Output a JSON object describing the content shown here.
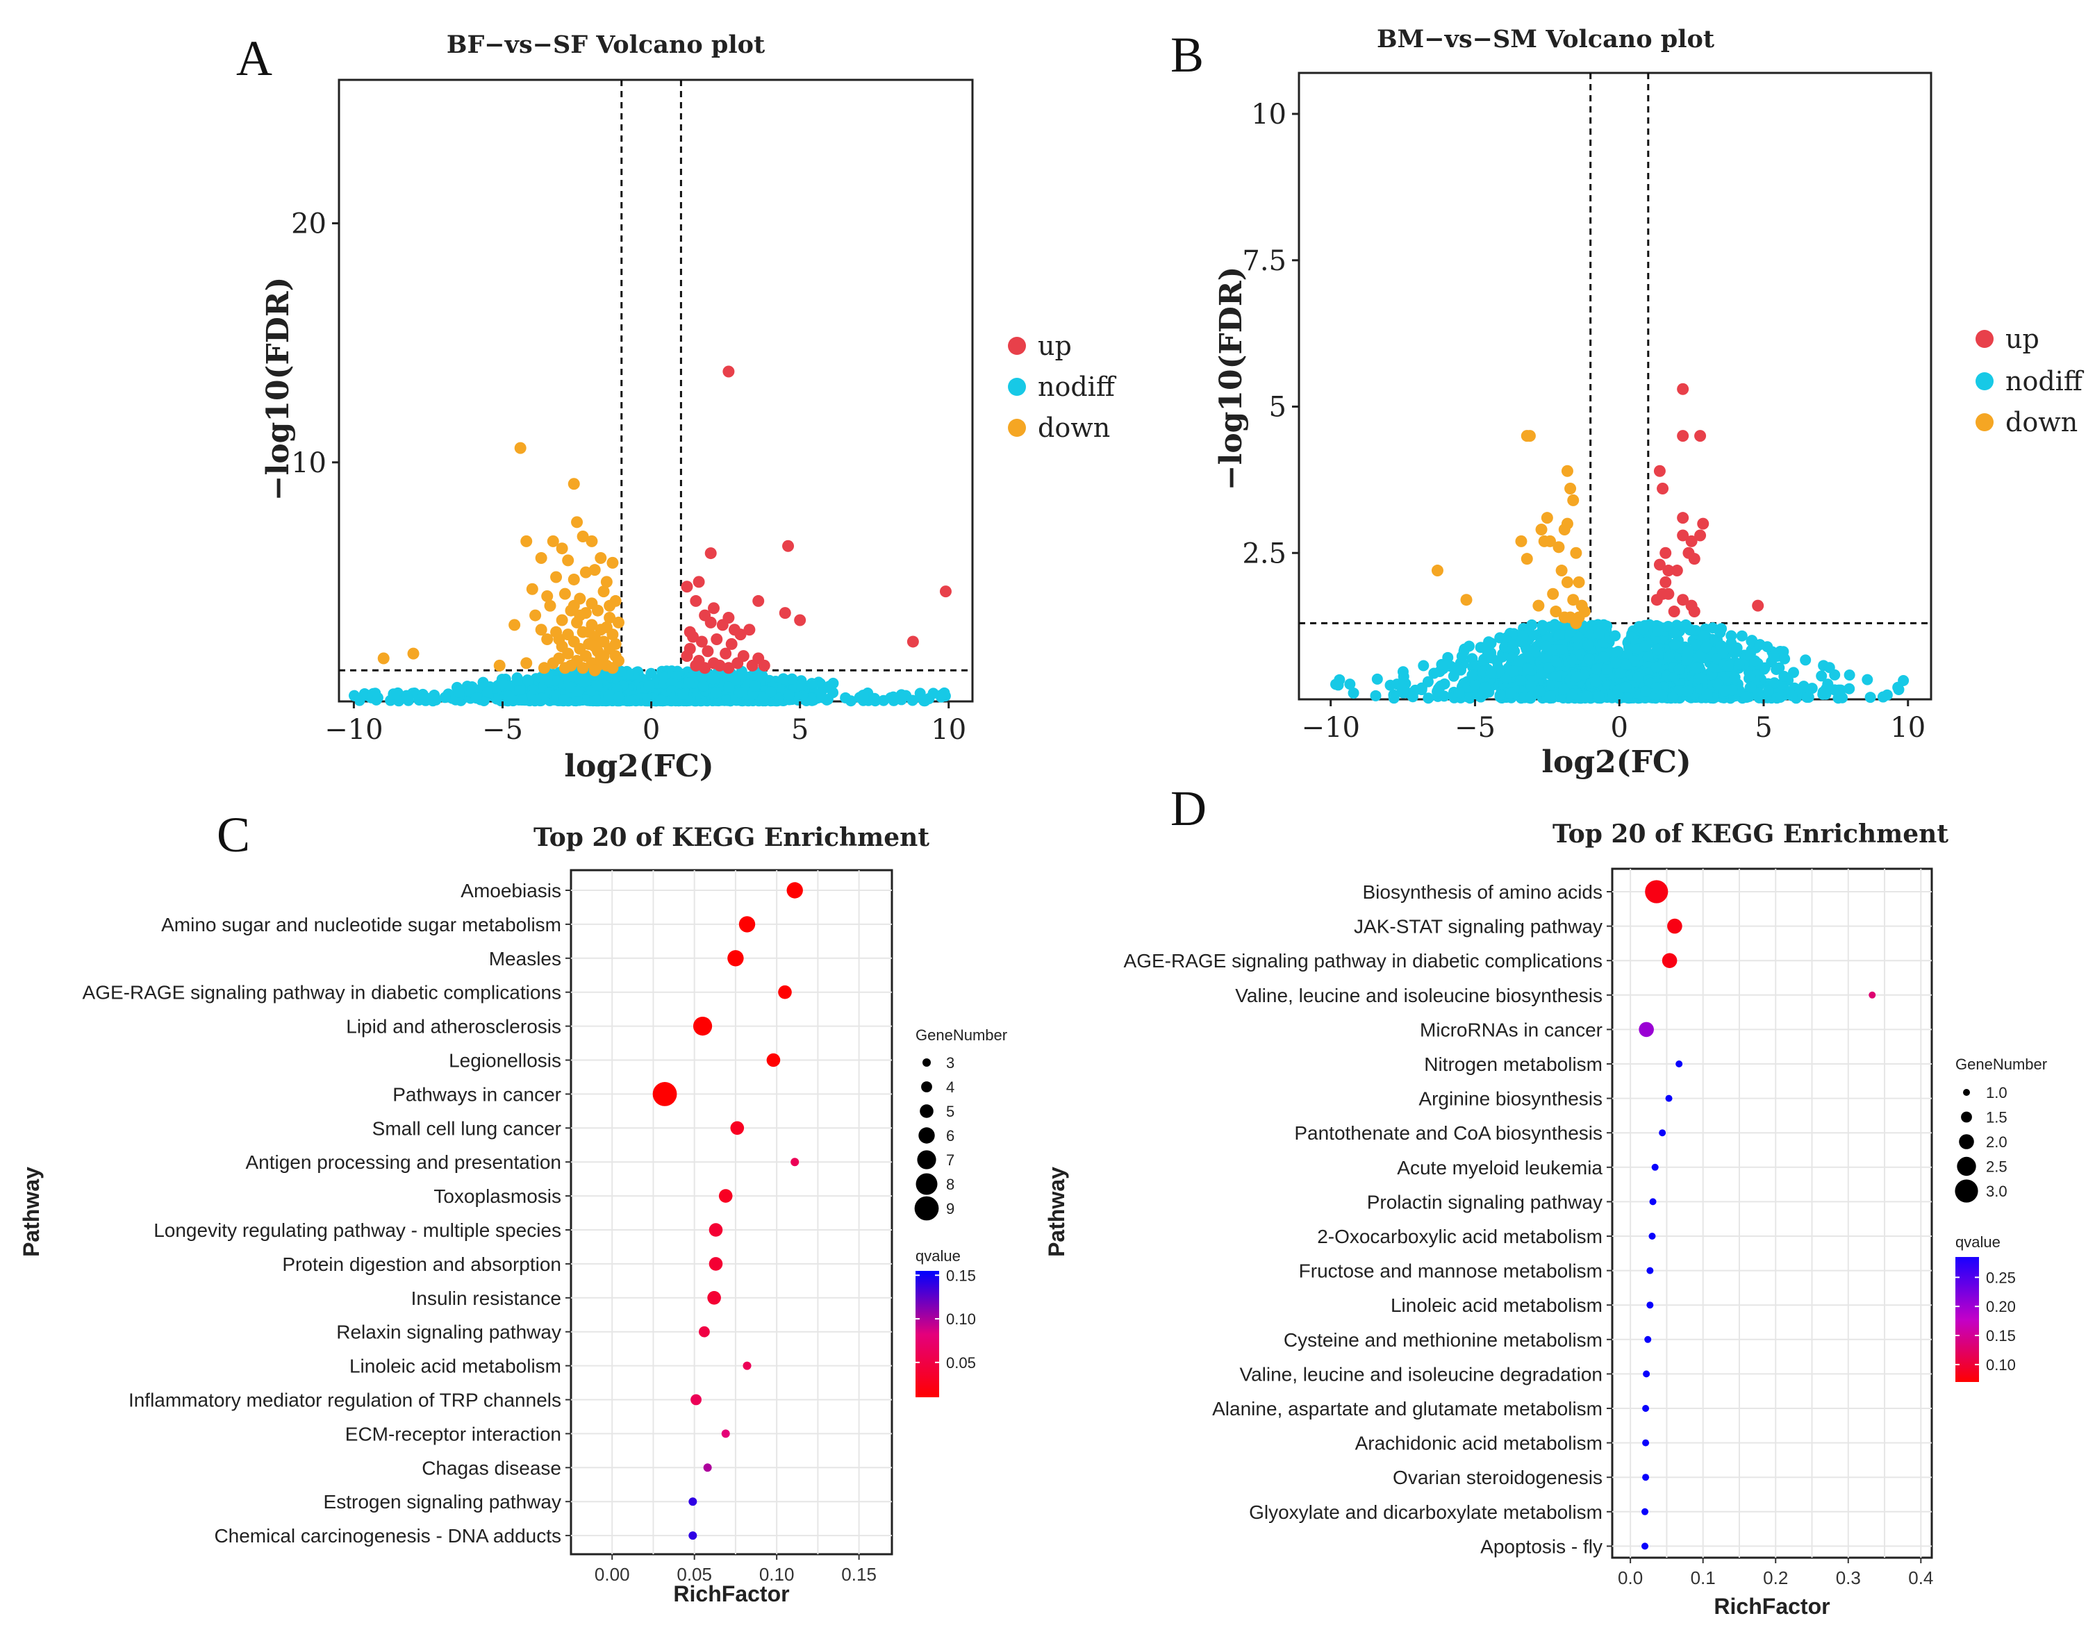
{
  "chart_data": [
    {
      "panel": "A",
      "type": "scatter",
      "title": "BF−vs−SF Volcano plot",
      "xlabel": "log2(FC)",
      "ylabel": "−log10(FDR)",
      "xlim": [
        -10.5,
        10.8
      ],
      "ylim": [
        0,
        26
      ],
      "xticks": [
        -10,
        -5,
        0,
        5,
        10
      ],
      "yticks": [
        10,
        20
      ],
      "xtick_labels": [
        "−10",
        "−5",
        "0",
        "5",
        "10"
      ],
      "ytick_labels": [
        "10",
        "20"
      ],
      "thresholds": {
        "log2fc": [
          -1,
          1
        ],
        "neg_log10_fdr": 1.3
      },
      "legend": [
        {
          "label": "up",
          "color": "#e8404a"
        },
        {
          "label": "nodiff",
          "color": "#17c9e6"
        },
        {
          "label": "down",
          "color": "#f5a623"
        }
      ],
      "series": [
        {
          "name": "up",
          "points": [
            [
              2.6,
              13.8
            ],
            [
              4.6,
              6.5
            ],
            [
              9.9,
              4.6
            ],
            [
              8.8,
              2.5
            ],
            [
              2.0,
              6.2
            ],
            [
              1.6,
              5.0
            ],
            [
              3.6,
              4.2
            ],
            [
              4.5,
              3.7
            ],
            [
              5.0,
              3.4
            ],
            [
              1.2,
              4.8
            ],
            [
              1.5,
              4.2
            ],
            [
              1.8,
              3.6
            ],
            [
              2.1,
              3.9
            ],
            [
              2.4,
              3.2
            ],
            [
              2.8,
              3.0
            ],
            [
              3.0,
              2.8
            ],
            [
              3.3,
              3.0
            ],
            [
              1.4,
              2.7
            ],
            [
              1.7,
              2.5
            ],
            [
              2.2,
              2.6
            ],
            [
              2.7,
              2.4
            ],
            [
              1.3,
              2.2
            ],
            [
              1.9,
              2.1
            ],
            [
              2.5,
              2.0
            ],
            [
              3.1,
              1.9
            ],
            [
              3.6,
              1.8
            ],
            [
              1.6,
              1.7
            ],
            [
              2.1,
              1.6
            ],
            [
              2.9,
              1.6
            ],
            [
              3.4,
              1.5
            ],
            [
              1.2,
              1.9
            ],
            [
              1.5,
              1.5
            ],
            [
              2.6,
              1.4
            ],
            [
              3.8,
              1.5
            ],
            [
              1.8,
              1.4
            ],
            [
              2.3,
              1.5
            ],
            [
              1.3,
              2.9
            ],
            [
              2.0,
              3.3
            ],
            [
              2.6,
              3.5
            ]
          ]
        },
        {
          "name": "down",
          "points": [
            [
              -4.4,
              10.6
            ],
            [
              -3.3,
              6.7
            ],
            [
              -4.2,
              6.7
            ],
            [
              -2.6,
              9.1
            ],
            [
              -2.5,
              7.5
            ],
            [
              -2.3,
              6.9
            ],
            [
              -3.0,
              6.4
            ],
            [
              -2.0,
              6.7
            ],
            [
              -1.7,
              6.0
            ],
            [
              -3.7,
              6.0
            ],
            [
              -2.8,
              5.9
            ],
            [
              -1.3,
              5.8
            ],
            [
              -2.2,
              5.4
            ],
            [
              -1.9,
              5.5
            ],
            [
              -3.2,
              5.2
            ],
            [
              -2.6,
              5.1
            ],
            [
              -1.5,
              5.0
            ],
            [
              -4.0,
              4.7
            ],
            [
              -3.5,
              4.4
            ],
            [
              -2.9,
              4.5
            ],
            [
              -2.4,
              4.3
            ],
            [
              -1.6,
              4.6
            ],
            [
              -2.0,
              4.1
            ],
            [
              -1.2,
              4.2
            ],
            [
              -3.4,
              4.0
            ],
            [
              -2.7,
              3.8
            ],
            [
              -2.2,
              3.7
            ],
            [
              -1.8,
              3.8
            ],
            [
              -1.4,
              3.5
            ],
            [
              -4.6,
              3.2
            ],
            [
              -3.9,
              3.6
            ],
            [
              -3.0,
              3.4
            ],
            [
              -2.5,
              3.3
            ],
            [
              -2.0,
              3.2
            ],
            [
              -1.5,
              3.1
            ],
            [
              -1.1,
              3.3
            ],
            [
              -3.7,
              3.0
            ],
            [
              -3.2,
              2.9
            ],
            [
              -2.8,
              2.8
            ],
            [
              -2.3,
              2.9
            ],
            [
              -1.9,
              2.7
            ],
            [
              -1.3,
              2.8
            ],
            [
              -3.5,
              2.6
            ],
            [
              -2.6,
              2.5
            ],
            [
              -2.1,
              2.4
            ],
            [
              -1.6,
              2.5
            ],
            [
              -1.2,
              2.4
            ],
            [
              -3.0,
              2.3
            ],
            [
              -2.4,
              2.2
            ],
            [
              -1.8,
              2.1
            ],
            [
              -1.4,
              2.2
            ],
            [
              -2.8,
              2.0
            ],
            [
              -2.2,
              1.9
            ],
            [
              -1.7,
              1.8
            ],
            [
              -1.2,
              1.9
            ],
            [
              -3.1,
              1.8
            ],
            [
              -2.5,
              1.7
            ],
            [
              -2.0,
              1.6
            ],
            [
              -1.5,
              1.5
            ],
            [
              -1.1,
              1.7
            ],
            [
              -2.7,
              1.5
            ],
            [
              -2.3,
              1.4
            ],
            [
              -1.8,
              1.5
            ],
            [
              -1.3,
              1.4
            ],
            [
              -8.0,
              2.0
            ],
            [
              -9.0,
              1.8
            ],
            [
              -5.1,
              1.5
            ],
            [
              -4.2,
              1.6
            ],
            [
              -3.6,
              1.4
            ],
            [
              -3.3,
              1.6
            ],
            [
              -2.9,
              1.4
            ],
            [
              -1.9,
              1.3
            ],
            [
              -1.6,
              1.9
            ],
            [
              -2.1,
              2.9
            ],
            [
              -2.4,
              3.6
            ],
            [
              -1.7,
              3.0
            ],
            [
              -1.4,
              4.0
            ],
            [
              -2.6,
              4.0
            ],
            [
              -3.1,
              2.6
            ],
            [
              -1.9,
              2.3
            ]
          ]
        }
      ]
    },
    {
      "panel": "B",
      "type": "scatter",
      "title": "BM−vs−SM Volcano plot",
      "xlabel": "log2(FC)",
      "ylabel": "−log10(FDR)",
      "xlim": [
        -11.1,
        10.8
      ],
      "ylim": [
        0,
        10.7
      ],
      "xticks": [
        -10,
        -5,
        0,
        5,
        10
      ],
      "yticks": [
        2.5,
        5,
        7.5,
        10
      ],
      "xtick_labels": [
        "−10",
        "−5",
        "0",
        "5",
        "10"
      ],
      "ytick_labels": [
        "2.5",
        "5",
        "7.5",
        "10"
      ],
      "thresholds": {
        "log2fc": [
          -1,
          1
        ],
        "neg_log10_fdr": 1.3
      },
      "legend": [
        {
          "label": "up",
          "color": "#e8404a"
        },
        {
          "label": "nodiff",
          "color": "#17c9e6"
        },
        {
          "label": "down",
          "color": "#f5a623"
        }
      ],
      "series": [
        {
          "name": "up",
          "points": [
            [
              2.2,
              5.3
            ],
            [
              2.2,
              4.5
            ],
            [
              2.8,
              4.5
            ],
            [
              1.4,
              3.9
            ],
            [
              1.5,
              3.6
            ],
            [
              2.2,
              3.1
            ],
            [
              2.2,
              2.8
            ],
            [
              1.6,
              2.5
            ],
            [
              2.4,
              2.5
            ],
            [
              2.6,
              2.4
            ],
            [
              2.5,
              2.7
            ],
            [
              2.8,
              2.8
            ],
            [
              2.9,
              3.0
            ],
            [
              1.4,
              2.3
            ],
            [
              1.6,
              2.0
            ],
            [
              1.5,
              1.8
            ],
            [
              1.7,
              1.8
            ],
            [
              2.2,
              1.7
            ],
            [
              2.5,
              1.6
            ],
            [
              4.8,
              1.6
            ],
            [
              2.6,
              1.5
            ],
            [
              1.3,
              1.7
            ],
            [
              1.9,
              1.5
            ],
            [
              2.0,
              2.2
            ],
            [
              1.7,
              2.2
            ]
          ]
        },
        {
          "name": "down",
          "points": [
            [
              -3.2,
              4.5
            ],
            [
              -3.1,
              4.5
            ],
            [
              -1.8,
              3.9
            ],
            [
              -1.7,
              3.6
            ],
            [
              -1.6,
              3.4
            ],
            [
              -1.8,
              3.0
            ],
            [
              -1.9,
              2.9
            ],
            [
              -2.4,
              2.7
            ],
            [
              -2.6,
              2.7
            ],
            [
              -2.1,
              2.6
            ],
            [
              -1.5,
              2.5
            ],
            [
              -2.0,
              2.2
            ],
            [
              -1.8,
              2.0
            ],
            [
              -1.4,
              2.0
            ],
            [
              -2.3,
              1.8
            ],
            [
              -1.6,
              1.7
            ],
            [
              -1.3,
              1.6
            ],
            [
              -2.8,
              1.6
            ],
            [
              -6.3,
              2.2
            ],
            [
              -5.3,
              1.7
            ],
            [
              -3.2,
              2.4
            ],
            [
              -2.7,
              2.9
            ],
            [
              -2.5,
              3.1
            ],
            [
              -3.4,
              2.7
            ],
            [
              -1.2,
              1.5
            ],
            [
              -1.4,
              1.4
            ],
            [
              -1.9,
              1.4
            ],
            [
              -2.2,
              1.5
            ],
            [
              -1.5,
              1.3
            ],
            [
              -1.7,
              1.4
            ]
          ]
        }
      ]
    },
    {
      "panel": "C",
      "type": "scatter",
      "title": "Top 20 of KEGG Enrichment",
      "xlabel": "RichFactor",
      "ylabel": "Pathway",
      "xlim": [
        -0.025,
        0.17
      ],
      "xticks": [
        0,
        0.05,
        0.1,
        0.15
      ],
      "xtick_labels": [
        "0.00",
        "0.05",
        "0.10",
        "0.15"
      ],
      "categories": [
        "Amoebiasis",
        "Amino sugar and nucleotide sugar metabolism",
        "Measles",
        "AGE-RAGE signaling pathway in diabetic complications",
        "Lipid and atherosclerosis",
        "Legionellosis",
        "Pathways in cancer",
        "Small cell lung cancer",
        "Antigen processing and presentation",
        "Toxoplasmosis",
        "Longevity regulating pathway - multiple species",
        "Protein digestion and absorption",
        "Insulin resistance",
        "Relaxin signaling pathway",
        "Linoleic acid metabolism",
        "Inflammatory mediator regulation of TRP channels",
        "ECM-receptor interaction",
        "Chagas disease",
        "Estrogen signaling pathway",
        "Chemical carcinogenesis - DNA adducts"
      ],
      "rich_factor": [
        0.111,
        0.082,
        0.075,
        0.105,
        0.055,
        0.098,
        0.032,
        0.076,
        0.111,
        0.069,
        0.063,
        0.063,
        0.062,
        0.056,
        0.082,
        0.051,
        0.069,
        0.058,
        0.049,
        0.049
      ],
      "gene_number": [
        6,
        6,
        6,
        5,
        7,
        5,
        9,
        5,
        3,
        5,
        5,
        5,
        5,
        4,
        3,
        4,
        3,
        3,
        3,
        3
      ],
      "qvalue": [
        0.01,
        0.01,
        0.01,
        0.01,
        0.01,
        0.01,
        0.01,
        0.03,
        0.06,
        0.03,
        0.04,
        0.04,
        0.04,
        0.05,
        0.06,
        0.06,
        0.08,
        0.1,
        0.14,
        0.14
      ],
      "size_legend": {
        "title": "GeneNumber",
        "values": [
          3,
          4,
          5,
          6,
          7,
          8,
          9
        ],
        "labels": [
          "3",
          "4",
          "5",
          "6",
          "7",
          "8",
          "9"
        ]
      },
      "color_legend": {
        "title": "qvalue",
        "min": 0.01,
        "max": 0.155,
        "ticks": [
          0.05,
          0.1,
          0.15
        ],
        "labels": [
          "0.05",
          "0.10",
          "0.15"
        ]
      }
    },
    {
      "panel": "D",
      "type": "scatter",
      "title": "Top 20 of KEGG Enrichment",
      "xlabel": "RichFactor",
      "ylabel": "Pathway",
      "xlim": [
        -0.025,
        0.415
      ],
      "xticks": [
        0,
        0.1,
        0.2,
        0.3,
        0.4
      ],
      "xtick_labels": [
        "0.0",
        "0.1",
        "0.2",
        "0.3",
        "0.4"
      ],
      "categories": [
        "Biosynthesis of amino acids",
        "JAK-STAT signaling pathway",
        "AGE-RAGE signaling pathway in diabetic complications",
        "Valine, leucine and isoleucine biosynthesis",
        "MicroRNAs in cancer",
        "Nitrogen metabolism",
        "Arginine biosynthesis",
        "Pantothenate and CoA biosynthesis",
        "Acute myeloid leukemia",
        "Prolactin signaling pathway",
        "2-Oxocarboxylic acid metabolism",
        "Fructose and mannose metabolism",
        "Linoleic acid metabolism",
        "Cysteine and methionine metabolism",
        "Valine, leucine and isoleucine degradation",
        "Alanine, aspartate and glutamate metabolism",
        "Arachidonic acid metabolism",
        "Ovarian steroidogenesis",
        "Glyoxylate and dicarboxylate metabolism",
        "Apoptosis - fly"
      ],
      "rich_factor": [
        0.036,
        0.061,
        0.054,
        0.333,
        0.022,
        0.067,
        0.053,
        0.044,
        0.034,
        0.031,
        0.03,
        0.027,
        0.027,
        0.024,
        0.022,
        0.021,
        0.021,
        0.021,
        0.02,
        0.02
      ],
      "gene_number": [
        3,
        2,
        2,
        1,
        2,
        1,
        1,
        1,
        1,
        1,
        1,
        1,
        1,
        1,
        1,
        1,
        1,
        1,
        1,
        1
      ],
      "qvalue": [
        0.08,
        0.08,
        0.08,
        0.13,
        0.2,
        0.28,
        0.28,
        0.28,
        0.28,
        0.28,
        0.28,
        0.28,
        0.28,
        0.28,
        0.28,
        0.28,
        0.28,
        0.28,
        0.28,
        0.28
      ],
      "size_legend": {
        "title": "GeneNumber",
        "values": [
          1.0,
          1.5,
          2.0,
          2.5,
          3.0
        ],
        "labels": [
          "1.0",
          "1.5",
          "2.0",
          "2.5",
          "3.0"
        ]
      },
      "color_legend": {
        "title": "qvalue",
        "min": 0.07,
        "max": 0.285,
        "ticks": [
          0.1,
          0.15,
          0.2,
          0.25
        ],
        "labels": [
          "0.10",
          "0.15",
          "0.20",
          "0.25"
        ]
      }
    }
  ]
}
